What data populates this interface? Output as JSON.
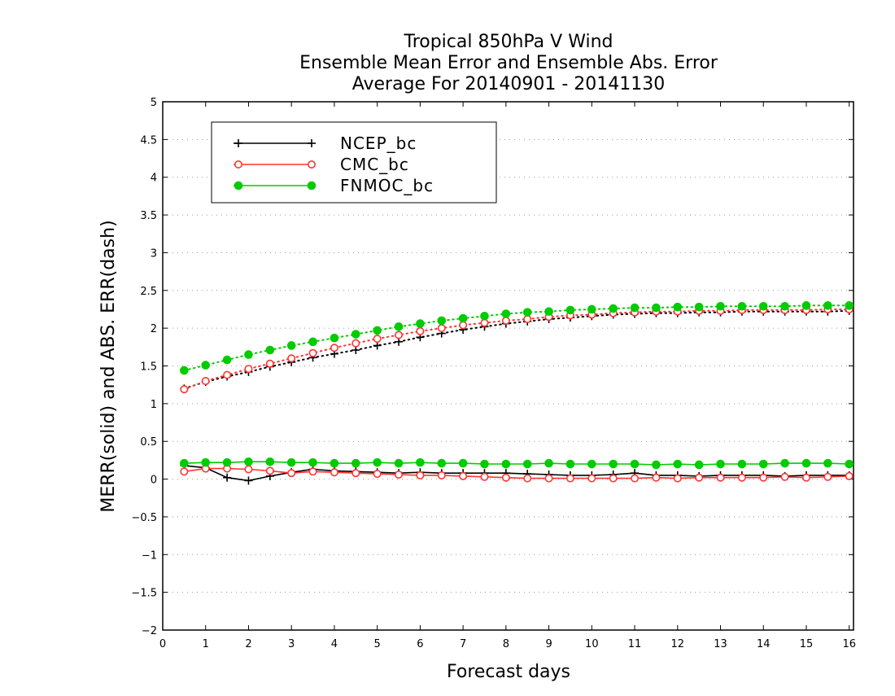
{
  "chart_data": {
    "type": "line",
    "title": [
      "Tropical 850hPa V Wind",
      "Ensemble Mean Error and Ensemble Abs. Error",
      "Average For 20140901 - 20141130"
    ],
    "xlabel": "Forecast days",
    "ylabel": "MERR(solid) and ABS. ERR(dash)",
    "xlim": [
      0,
      16.1
    ],
    "ylim": [
      -2,
      5
    ],
    "xticks": [
      0,
      1,
      2,
      3,
      4,
      5,
      6,
      7,
      8,
      9,
      10,
      11,
      12,
      13,
      14,
      15,
      16
    ],
    "yticks": [
      -2,
      -1.5,
      -1,
      -0.5,
      0,
      0.5,
      1,
      1.5,
      2,
      2.5,
      3,
      3.5,
      4,
      4.5,
      5
    ],
    "ytick_labels": [
      "−2",
      "−1.5",
      "−1",
      "−0.5",
      "0",
      "0.5",
      "1",
      "1.5",
      "2",
      "2.5",
      "3",
      "3.5",
      "4",
      "4.5",
      "5"
    ],
    "grid": "horizontal dotted",
    "legend_position": "top-left",
    "x": [
      0.5,
      1,
      1.5,
      2,
      2.5,
      3,
      3.5,
      4,
      4.5,
      5,
      5.5,
      6,
      6.5,
      7,
      7.5,
      8,
      8.5,
      9,
      9.5,
      10,
      10.5,
      11,
      11.5,
      12,
      12.5,
      13,
      13.5,
      14,
      14.5,
      15,
      15.5,
      16
    ],
    "series": [
      {
        "name": "NCEP_bc",
        "color": "#000000",
        "marker": "plus",
        "merr": [
          0.18,
          0.15,
          0.02,
          -0.02,
          0.04,
          0.09,
          0.13,
          0.11,
          0.1,
          0.09,
          0.08,
          0.09,
          0.08,
          0.08,
          0.08,
          0.08,
          0.07,
          0.06,
          0.05,
          0.05,
          0.06,
          0.08,
          0.05,
          0.05,
          0.04,
          0.05,
          0.05,
          0.05,
          0.04,
          0.05,
          0.05,
          0.05
        ],
        "abs_err": [
          1.2,
          1.29,
          1.36,
          1.42,
          1.49,
          1.55,
          1.61,
          1.66,
          1.71,
          1.77,
          1.82,
          1.88,
          1.93,
          1.98,
          2.02,
          2.06,
          2.09,
          2.12,
          2.14,
          2.16,
          2.18,
          2.19,
          2.2,
          2.2,
          2.21,
          2.21,
          2.22,
          2.22,
          2.22,
          2.22,
          2.22,
          2.23
        ]
      },
      {
        "name": "CMC_bc",
        "color": "#ff3333",
        "marker": "open-circle",
        "merr": [
          0.1,
          0.14,
          0.14,
          0.13,
          0.11,
          0.08,
          0.1,
          0.09,
          0.08,
          0.07,
          0.06,
          0.05,
          0.05,
          0.04,
          0.03,
          0.02,
          0.01,
          0.01,
          0.01,
          0.01,
          0.01,
          0.01,
          0.02,
          0.01,
          0.02,
          0.02,
          0.02,
          0.02,
          0.03,
          0.02,
          0.03,
          0.04
        ],
        "abs_err": [
          1.19,
          1.3,
          1.38,
          1.46,
          1.53,
          1.6,
          1.67,
          1.74,
          1.8,
          1.86,
          1.91,
          1.96,
          2.0,
          2.04,
          2.07,
          2.1,
          2.12,
          2.15,
          2.17,
          2.18,
          2.2,
          2.21,
          2.22,
          2.22,
          2.23,
          2.23,
          2.24,
          2.24,
          2.24,
          2.24,
          2.25,
          2.25
        ]
      },
      {
        "name": "FNMOC_bc",
        "color": "#00cc00",
        "marker": "filled-circle",
        "merr": [
          0.21,
          0.22,
          0.22,
          0.23,
          0.23,
          0.22,
          0.22,
          0.21,
          0.21,
          0.22,
          0.21,
          0.22,
          0.21,
          0.21,
          0.2,
          0.2,
          0.2,
          0.21,
          0.2,
          0.2,
          0.2,
          0.2,
          0.19,
          0.2,
          0.19,
          0.2,
          0.2,
          0.2,
          0.21,
          0.21,
          0.21,
          0.2
        ],
        "abs_err": [
          1.44,
          1.51,
          1.58,
          1.65,
          1.71,
          1.77,
          1.82,
          1.87,
          1.92,
          1.97,
          2.02,
          2.06,
          2.1,
          2.13,
          2.16,
          2.19,
          2.21,
          2.22,
          2.24,
          2.25,
          2.26,
          2.27,
          2.27,
          2.28,
          2.28,
          2.29,
          2.29,
          2.29,
          2.29,
          2.3,
          2.3,
          2.3
        ]
      }
    ]
  }
}
